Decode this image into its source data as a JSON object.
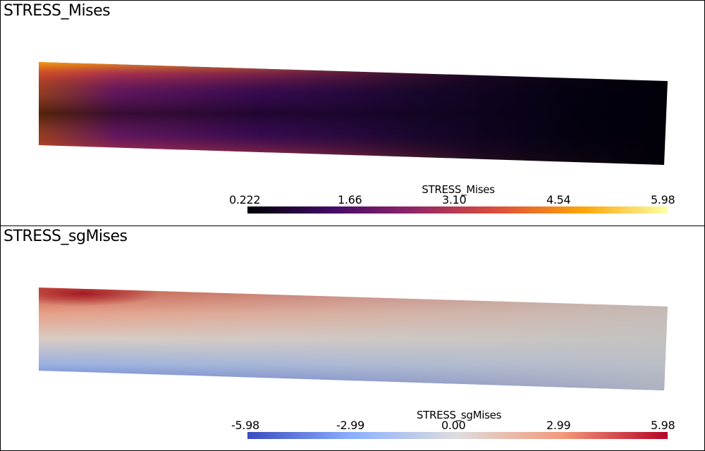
{
  "panels": [
    {
      "title": "STRESS_Mises",
      "colorbar": {
        "title": "STRESS_Mises",
        "ticks": [
          "0.222",
          "1.66",
          "3.10",
          "4.54",
          "5.98"
        ],
        "range": [
          0.222,
          5.98
        ],
        "colormap": "inferno",
        "colors": [
          "#000004",
          "#420a68",
          "#932667",
          "#dd513a",
          "#fca50a",
          "#fcffa4"
        ]
      }
    },
    {
      "title": "STRESS_sgMises",
      "colorbar": {
        "title": "STRESS_sgMises",
        "ticks": [
          "-5.98",
          "-2.99",
          "0.00",
          "2.99",
          "5.98"
        ],
        "range": [
          -5.98,
          5.98
        ],
        "colormap": "coolwarm",
        "colors": [
          "#3b4cc0",
          "#8db0fe",
          "#dddddd",
          "#f4987a",
          "#b40426"
        ]
      }
    }
  ]
}
